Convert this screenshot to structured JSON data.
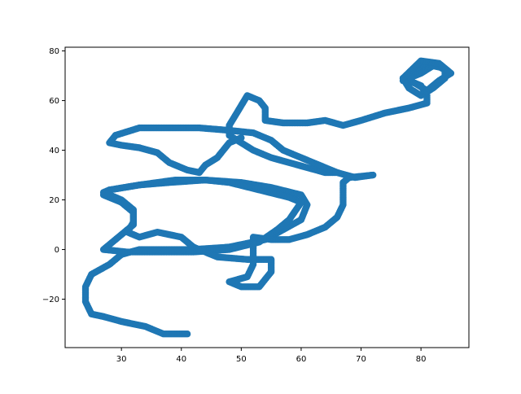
{
  "chart_data": {
    "type": "scatter",
    "title": "",
    "xlabel": "",
    "ylabel": "",
    "xlim": [
      20.6,
      88
    ],
    "ylim": [
      -39.5,
      81.5
    ],
    "xticks": [
      30,
      40,
      50,
      60,
      70,
      80
    ],
    "yticks": [
      -20,
      0,
      20,
      40,
      60,
      80
    ],
    "grid": false,
    "legend": "none",
    "marker_color": "#1f77b4",
    "series": [
      {
        "description_free": true,
        "path": [
          [
            41,
            -34
          ],
          [
            37,
            -34
          ],
          [
            34,
            -31
          ],
          [
            30,
            -29
          ],
          [
            27,
            -27
          ],
          [
            25,
            -26
          ],
          [
            24,
            -21
          ],
          [
            24,
            -15
          ],
          [
            25,
            -10
          ],
          [
            28,
            -6
          ],
          [
            30,
            -2
          ],
          [
            33,
            0
          ],
          [
            37,
            0
          ],
          [
            42,
            0
          ],
          [
            48,
            1
          ],
          [
            54,
            4
          ],
          [
            60,
            12
          ],
          [
            61,
            18
          ],
          [
            60,
            22
          ],
          [
            55,
            25
          ],
          [
            50,
            27
          ],
          [
            44,
            28
          ],
          [
            38,
            27
          ],
          [
            33,
            26
          ],
          [
            28,
            24
          ],
          [
            27,
            22
          ],
          [
            30,
            19
          ],
          [
            32,
            15
          ],
          [
            32,
            10
          ],
          [
            29,
            4
          ],
          [
            27,
            0
          ],
          [
            31,
            -1
          ],
          [
            37,
            -1
          ],
          [
            42,
            -1
          ],
          [
            48,
            0
          ],
          [
            53,
            3
          ],
          [
            56,
            8
          ],
          [
            58,
            12
          ],
          [
            60,
            19
          ],
          [
            58,
            21
          ],
          [
            53,
            24
          ],
          [
            48,
            27
          ],
          [
            44,
            28
          ],
          [
            39,
            28
          ],
          [
            33,
            26
          ],
          [
            28,
            24
          ],
          [
            27,
            23
          ],
          [
            30,
            20
          ],
          [
            32,
            16
          ],
          [
            32,
            11
          ],
          [
            31,
            7
          ],
          [
            33,
            5
          ],
          [
            36,
            7
          ],
          [
            40,
            5
          ],
          [
            42,
            1
          ],
          [
            46,
            -3
          ],
          [
            51,
            -4
          ],
          [
            55,
            -4
          ],
          [
            55,
            -9
          ],
          [
            53,
            -15
          ],
          [
            50,
            -15
          ],
          [
            48,
            -13
          ],
          [
            51,
            -11
          ],
          [
            52,
            -6
          ],
          [
            52,
            1
          ],
          [
            52,
            5
          ],
          [
            55,
            4
          ],
          [
            58,
            4
          ],
          [
            61,
            6
          ],
          [
            64,
            9
          ],
          [
            66,
            13
          ],
          [
            67,
            18
          ],
          [
            67,
            23
          ],
          [
            67,
            27
          ],
          [
            68,
            29
          ],
          [
            72,
            30
          ],
          [
            69,
            29
          ],
          [
            66,
            31
          ],
          [
            64,
            31
          ],
          [
            61,
            33
          ],
          [
            58,
            35
          ],
          [
            55,
            37
          ],
          [
            52,
            40
          ],
          [
            50,
            43
          ],
          [
            48,
            46
          ],
          [
            48,
            50
          ],
          [
            49,
            54
          ],
          [
            50,
            58
          ],
          [
            51,
            62
          ],
          [
            53,
            60
          ],
          [
            54,
            57
          ],
          [
            54,
            52
          ],
          [
            57,
            51
          ],
          [
            61,
            51
          ],
          [
            64,
            52
          ],
          [
            67,
            50
          ],
          [
            70,
            52
          ],
          [
            74,
            55
          ],
          [
            78,
            57
          ],
          [
            81,
            59
          ],
          [
            81,
            62
          ],
          [
            80,
            66
          ],
          [
            77,
            69
          ],
          [
            79,
            72
          ],
          [
            82,
            75
          ],
          [
            85,
            71
          ],
          [
            83,
            68
          ],
          [
            81,
            64
          ],
          [
            79,
            67
          ],
          [
            77,
            68
          ],
          [
            80,
            71
          ],
          [
            82,
            74
          ],
          [
            84,
            73
          ],
          [
            84,
            69
          ],
          [
            82,
            65
          ],
          [
            80,
            62
          ],
          [
            78,
            65
          ],
          [
            77,
            69
          ],
          [
            80,
            76
          ],
          [
            83,
            75
          ],
          [
            85,
            71
          ]
        ],
        "path2": [
          [
            50,
            45
          ],
          [
            48,
            43
          ],
          [
            47,
            40
          ],
          [
            46,
            37
          ],
          [
            44,
            34
          ],
          [
            43,
            31
          ],
          [
            41,
            32
          ],
          [
            38,
            35
          ],
          [
            36,
            39
          ],
          [
            33,
            41
          ],
          [
            30,
            42
          ],
          [
            28,
            43
          ],
          [
            29,
            46
          ],
          [
            33,
            49
          ],
          [
            38,
            49
          ],
          [
            43,
            49
          ],
          [
            48,
            48
          ],
          [
            52,
            47
          ],
          [
            55,
            44
          ],
          [
            57,
            40
          ],
          [
            60,
            37
          ],
          [
            63,
            34
          ],
          [
            66,
            31
          ]
        ]
      }
    ]
  }
}
